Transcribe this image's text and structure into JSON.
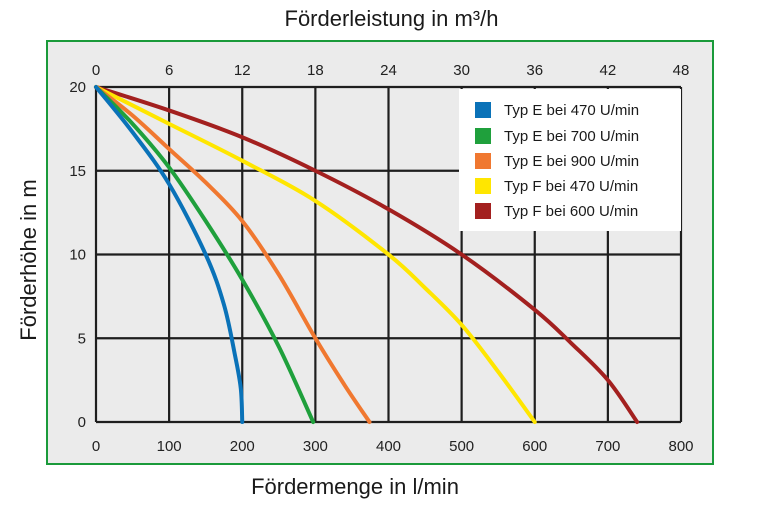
{
  "chart_data": {
    "type": "line",
    "title_top": "Förderleistung in m³/h",
    "xlabel": "Fördermenge in l/min",
    "ylabel": "Förderhöhe in m",
    "x_ticks": [
      0,
      100,
      200,
      300,
      400,
      500,
      600,
      700,
      800
    ],
    "x_top_ticks": [
      0,
      6,
      12,
      18,
      24,
      30,
      36,
      42,
      48
    ],
    "y_ticks": [
      0,
      5,
      10,
      15,
      20
    ],
    "xlim": [
      0,
      800
    ],
    "ylim": [
      0,
      20
    ],
    "grid": true,
    "legend_position": "upper right",
    "series": [
      {
        "name": "Typ E bei 470 U/min",
        "color": "#0a72b8",
        "points": [
          [
            0,
            20
          ],
          [
            50,
            17.3
          ],
          [
            100,
            14.2
          ],
          [
            150,
            10
          ],
          [
            175,
            7
          ],
          [
            190,
            4
          ],
          [
            198,
            2
          ],
          [
            200,
            0
          ]
        ]
      },
      {
        "name": "Typ E bei 700 U/min",
        "color": "#1fa03c",
        "points": [
          [
            0,
            20
          ],
          [
            50,
            17.8
          ],
          [
            100,
            15.2
          ],
          [
            150,
            12
          ],
          [
            200,
            8.5
          ],
          [
            250,
            4.5
          ],
          [
            297,
            0
          ]
        ]
      },
      {
        "name": "Typ E bei 900 U/min",
        "color": "#f07830",
        "points": [
          [
            0,
            20
          ],
          [
            50,
            18.3
          ],
          [
            100,
            16.3
          ],
          [
            150,
            14.3
          ],
          [
            200,
            12
          ],
          [
            250,
            8.8
          ],
          [
            300,
            5
          ],
          [
            340,
            2.2
          ],
          [
            374,
            0
          ]
        ]
      },
      {
        "name": "Typ F bei 470 U/min",
        "color": "#ffe600",
        "points": [
          [
            0,
            20
          ],
          [
            100,
            17.8
          ],
          [
            200,
            15.6
          ],
          [
            300,
            13.2
          ],
          [
            400,
            10
          ],
          [
            450,
            8
          ],
          [
            500,
            5.8
          ],
          [
            550,
            3
          ],
          [
            600,
            0
          ]
        ]
      },
      {
        "name": "Typ F bei 600 U/min",
        "color": "#a3201f",
        "points": [
          [
            0,
            20
          ],
          [
            100,
            18.6
          ],
          [
            200,
            17
          ],
          [
            300,
            15
          ],
          [
            400,
            12.7
          ],
          [
            500,
            10
          ],
          [
            600,
            6.7
          ],
          [
            650,
            4.7
          ],
          [
            700,
            2.5
          ],
          [
            740,
            0
          ]
        ]
      }
    ]
  },
  "labels": {
    "top_title": "Förderleistung in m³/h",
    "bottom_title": "Fördermenge in l/min",
    "y_title": "Förderhöhe in m"
  },
  "legend": [
    {
      "label": "Typ E bei 470 U/min",
      "color": "#0a72b8"
    },
    {
      "label": "Typ E bei 700 U/min",
      "color": "#1fa03c"
    },
    {
      "label": "Typ E bei 900 U/min",
      "color": "#f07830"
    },
    {
      "label": "Typ F bei 470 U/min",
      "color": "#ffe600"
    },
    {
      "label": "Typ F bei 600 U/min",
      "color": "#a3201f"
    }
  ]
}
